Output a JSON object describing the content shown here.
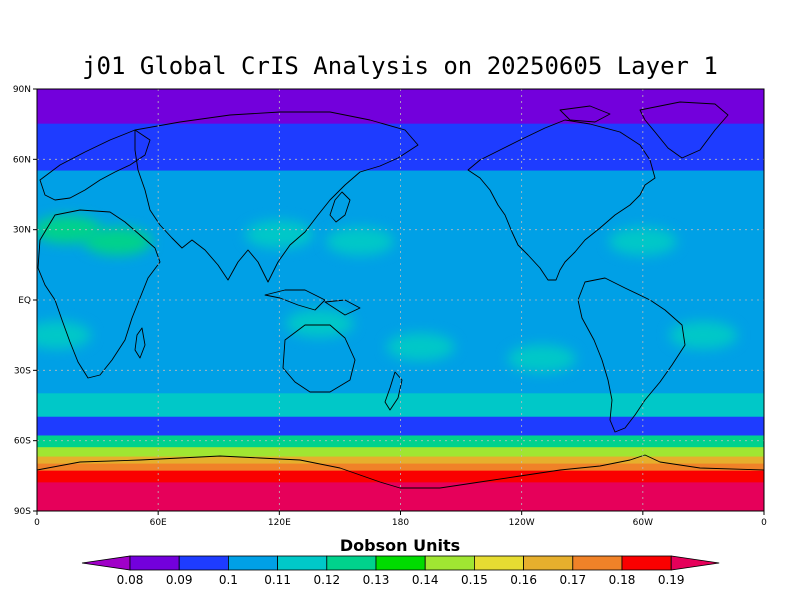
{
  "title": "j01 Global CrIS Analysis on 20250605 Layer 1",
  "colorbar": {
    "title": "Dobson Units",
    "labels": [
      "0.08",
      "0.09",
      "0.1",
      "0.11",
      "0.12",
      "0.13",
      "0.14",
      "0.15",
      "0.16",
      "0.17",
      "0.18",
      "0.19"
    ],
    "colors": [
      "#a000c8",
      "#7300dc",
      "#1e3cff",
      "#00a0e6",
      "#00c8c8",
      "#00d28c",
      "#00dc00",
      "#a0e632",
      "#e6dc32",
      "#e6af2d",
      "#f08228",
      "#fa0000",
      "#e6005a"
    ]
  },
  "map_axes": {
    "lat_labels": [
      "90N",
      "60N",
      "30N",
      "EQ",
      "30S",
      "60S",
      "90S"
    ],
    "lon_labels": [
      "0",
      "60E",
      "120E",
      "180",
      "120W",
      "60W",
      "0"
    ],
    "projection": "cylindrical equidistant",
    "grid": true
  },
  "map_field": {
    "units": "Dobson Units",
    "latitude_bands": [
      {
        "lat_range": [
          75,
          90
        ],
        "value": 0.08
      },
      {
        "lat_range": [
          55,
          75
        ],
        "value": 0.09
      },
      {
        "lat_range": [
          -40,
          55
        ],
        "value": 0.1
      },
      {
        "lat_range": [
          -50,
          -40
        ],
        "value": 0.11
      },
      {
        "lat_range": [
          -58,
          -50
        ],
        "value": 0.09
      },
      {
        "lat_range": [
          -63,
          -58
        ],
        "value": 0.12
      },
      {
        "lat_range": [
          -67,
          -63
        ],
        "value": 0.14
      },
      {
        "lat_range": [
          -70,
          -67
        ],
        "value": 0.16
      },
      {
        "lat_range": [
          -73,
          -70
        ],
        "value": 0.17
      },
      {
        "lat_range": [
          -78,
          -73
        ],
        "value": 0.18
      },
      {
        "lat_range": [
          -90,
          -78
        ],
        "value": 0.19
      }
    ],
    "midlatitude_patches": [
      {
        "lat": 30,
        "lon": 15,
        "value": 0.12
      },
      {
        "lat": 25,
        "lon": 40,
        "value": 0.12
      },
      {
        "lat": 28,
        "lon": 120,
        "value": 0.11
      },
      {
        "lat": 25,
        "lon": 160,
        "value": 0.11
      },
      {
        "lat": 25,
        "lon": 300,
        "value": 0.11
      },
      {
        "lat": -15,
        "lon": 10,
        "value": 0.11
      },
      {
        "lat": -10,
        "lon": 140,
        "value": 0.11
      },
      {
        "lat": -20,
        "lon": 190,
        "value": 0.11
      },
      {
        "lat": -25,
        "lon": 250,
        "value": 0.11
      },
      {
        "lat": -15,
        "lon": 330,
        "value": 0.11
      }
    ]
  }
}
